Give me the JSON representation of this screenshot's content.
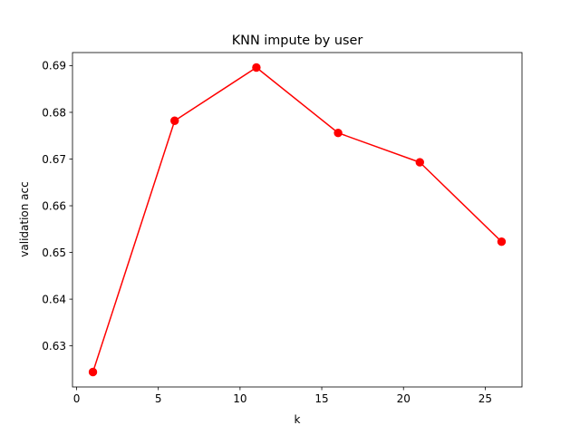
{
  "chart_data": {
    "type": "line",
    "title": "KNN impute by user",
    "xlabel": "k",
    "ylabel": "validation acc",
    "x": [
      1,
      6,
      11,
      16,
      21,
      26
    ],
    "series": [
      {
        "values": [
          0.6244,
          0.6782,
          0.6896,
          0.6756,
          0.6693,
          0.6523
        ],
        "color": "#ff0000",
        "marker": "circle"
      }
    ],
    "xlim": [
      -0.25,
      27.25
    ],
    "ylim": [
      0.6212,
      0.6928
    ],
    "xticks": [
      0,
      5,
      10,
      15,
      20,
      25
    ],
    "xtick_labels": [
      "0",
      "5",
      "10",
      "15",
      "20",
      "25"
    ],
    "yticks": [
      0.63,
      0.64,
      0.65,
      0.66,
      0.67,
      0.68,
      0.69
    ],
    "ytick_labels": [
      "0.63",
      "0.64",
      "0.65",
      "0.66",
      "0.67",
      "0.68",
      "0.69"
    ],
    "grid": false,
    "legend": "none"
  }
}
